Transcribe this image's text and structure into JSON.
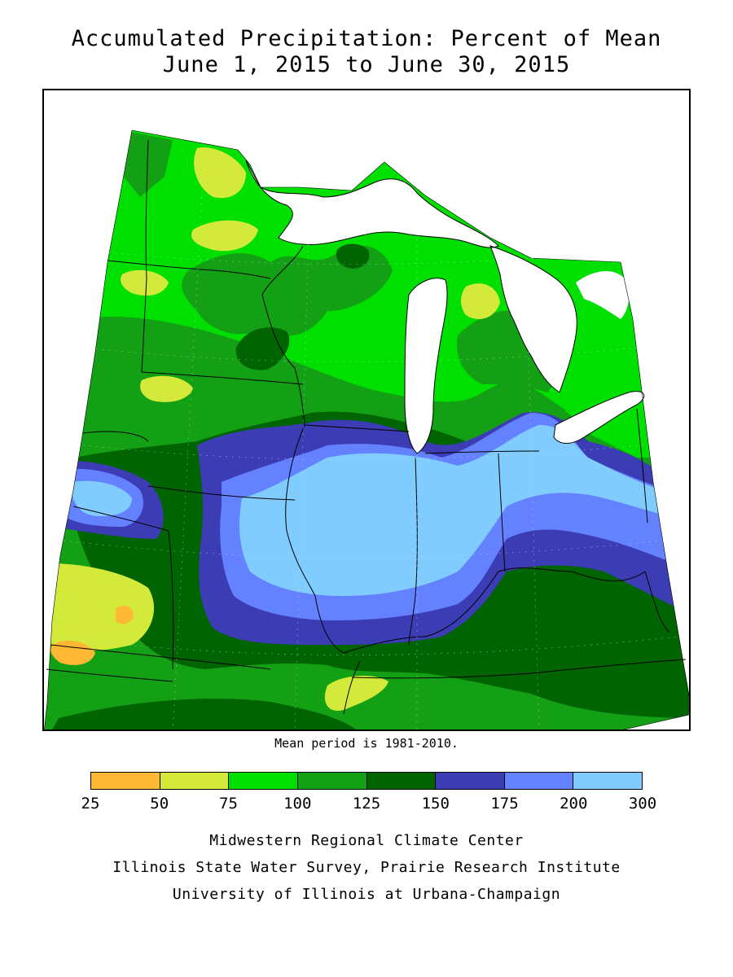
{
  "title": {
    "line1": "Accumulated Precipitation: Percent of Mean",
    "line2": "June 1, 2015 to June 30, 2015"
  },
  "mean_note": "Mean period is 1981-2010.",
  "legend": {
    "bins": [
      {
        "from": 25,
        "to": 50,
        "color": "#ffb833"
      },
      {
        "from": 50,
        "to": 75,
        "color": "#d4ea3a"
      },
      {
        "from": 75,
        "to": 100,
        "color": "#00e000"
      },
      {
        "from": 100,
        "to": 125,
        "color": "#14a014"
      },
      {
        "from": 125,
        "to": 150,
        "color": "#006400"
      },
      {
        "from": 150,
        "to": 175,
        "color": "#3c3cb4"
      },
      {
        "from": 175,
        "to": 200,
        "color": "#6482ff"
      },
      {
        "from": 200,
        "to": 300,
        "color": "#80ccff"
      }
    ],
    "ticks": [
      "25",
      "50",
      "75",
      "100",
      "125",
      "150",
      "175",
      "200",
      "300"
    ]
  },
  "credits": {
    "line1": "Midwestern Regional Climate Center",
    "line2": "Illinois State Water Survey, Prairie Research Institute",
    "line3": "University of Illinois at Urbana-Champaign"
  },
  "colors": {
    "land_base": "#00e000",
    "lakes": "#ffffff",
    "borders": "#000000"
  }
}
